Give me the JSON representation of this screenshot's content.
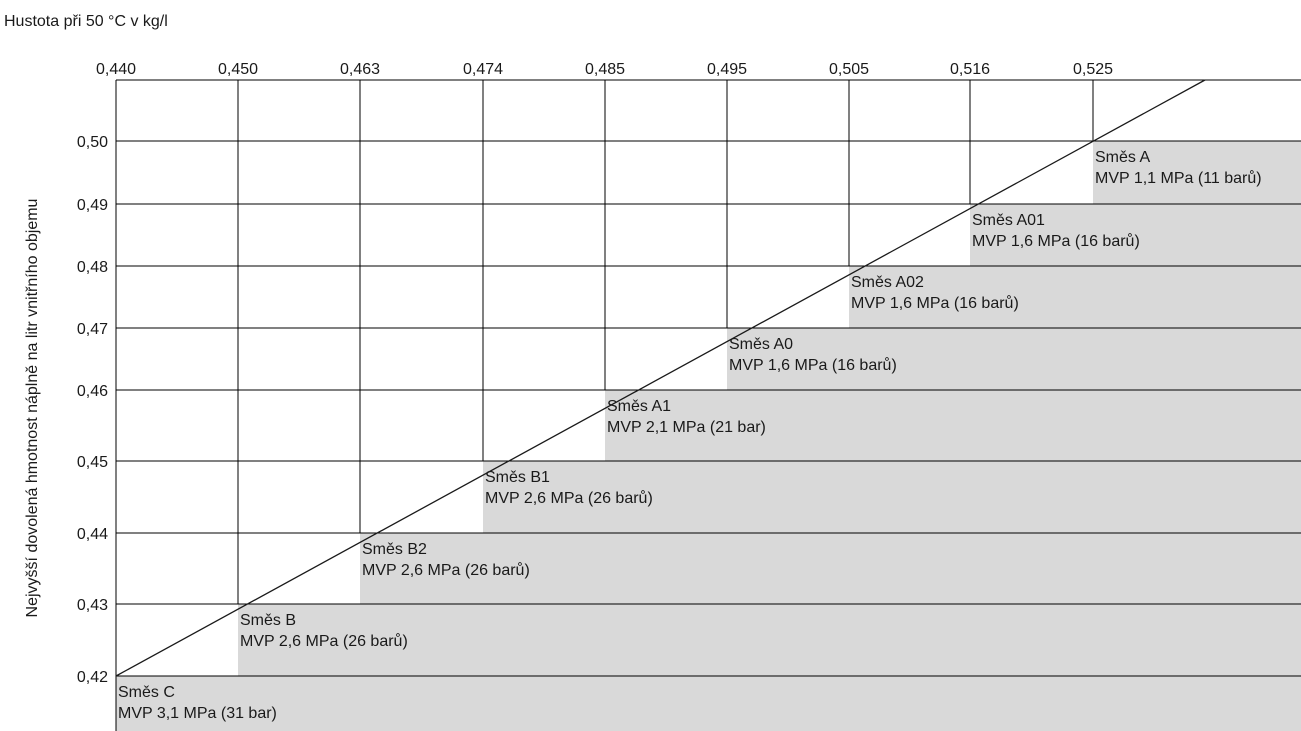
{
  "x_axis": {
    "title": "Hustota při 50 °C v kg/l",
    "tick_labels": [
      "0,440",
      "0,450",
      "0,463",
      "0,474",
      "0,485",
      "0,495",
      "0,505",
      "0,516",
      "0,525"
    ]
  },
  "y_axis": {
    "title": "Nejvyšší dovolená hmotnost náplně na litr vnitřního objemu",
    "tick_labels": [
      "0,50",
      "0,49",
      "0,48",
      "0,47",
      "0,46",
      "0,45",
      "0,44",
      "0,43",
      "0,42"
    ]
  },
  "colors": {
    "region_fill": "#d9d9d9",
    "grid": "#000000",
    "limit_line": "#1a1a1a",
    "background": "#ffffff"
  },
  "regions": [
    {
      "name": "Směs A",
      "pressure": "MVP 1,1 MPa (11 barů)",
      "density_from": 0.525,
      "mass_from": 0.5
    },
    {
      "name": "Směs A01",
      "pressure": "MVP 1,6 MPa (16 barů)",
      "density_from": 0.516,
      "mass_from": 0.49
    },
    {
      "name": "Směs A02",
      "pressure": "MVP 1,6 MPa (16 barů)",
      "density_from": 0.505,
      "mass_from": 0.48
    },
    {
      "name": "Směs A0",
      "pressure": "MVP 1,6 MPa (16 barů)",
      "density_from": 0.495,
      "mass_from": 0.47
    },
    {
      "name": "Směs A1",
      "pressure": "MVP 2,1 MPa (21 bar)",
      "density_from": 0.485,
      "mass_from": 0.46
    },
    {
      "name": "Směs B1",
      "pressure": "MVP 2,6 MPa (26 barů)",
      "density_from": 0.474,
      "mass_from": 0.45
    },
    {
      "name": "Směs B2",
      "pressure": "MVP 2,6 MPa (26 barů)",
      "density_from": 0.463,
      "mass_from": 0.44
    },
    {
      "name": "Směs B",
      "pressure": "MVP 2,6 MPa (26 barů)",
      "density_from": 0.45,
      "mass_from": 0.43
    },
    {
      "name": "Směs C",
      "pressure": "MVP 3,1 MPa (31 bar)",
      "density_from": 0.44,
      "mass_from": 0.42
    }
  ]
}
